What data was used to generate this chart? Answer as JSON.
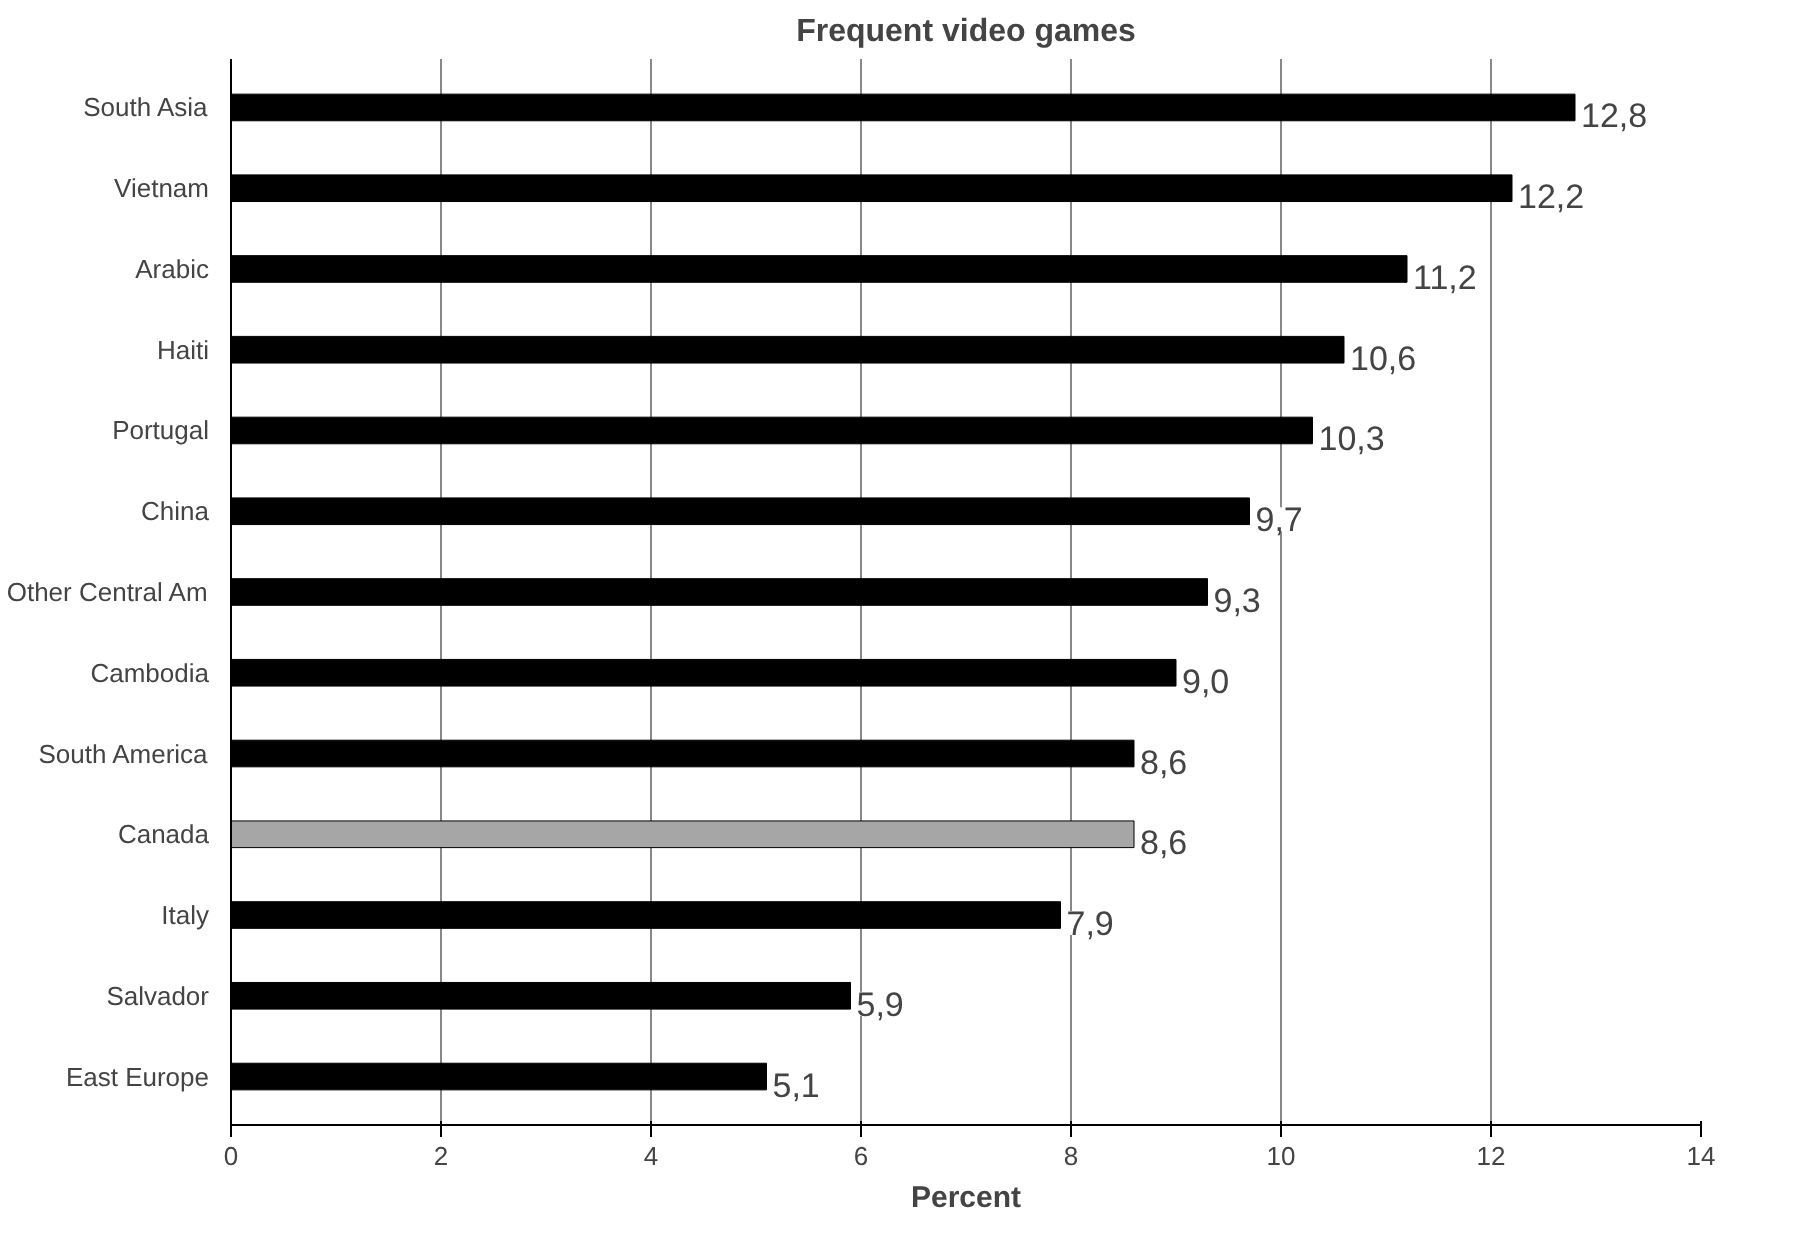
{
  "chart_data": {
    "type": "bar",
    "orientation": "horizontal",
    "title": "Frequent video games",
    "xlabel": "Percent",
    "categories": [
      "South Asia",
      "Vietnam",
      "Arabic",
      "Haiti",
      "Portugal",
      "China",
      "Other Central Am",
      "Cambodia",
      "South America",
      "Canada",
      "Italy",
      "Salvador",
      "East Europe"
    ],
    "values": [
      12.8,
      12.2,
      11.2,
      10.6,
      10.3,
      9.7,
      9.3,
      9.0,
      8.6,
      8.6,
      7.9,
      5.9,
      5.1
    ],
    "colors": [
      "#000000",
      "#000000",
      "#000000",
      "#000000",
      "#000000",
      "#000000",
      "#000000",
      "#000000",
      "#000000",
      "#a6a6a6",
      "#000000",
      "#000000",
      "#000000"
    ],
    "value_labels": [
      "12,8",
      "12,2",
      "11,2",
      "10,6",
      "10,3",
      "9,7",
      "9,3",
      "9,0",
      "8,6",
      "8,6",
      "7,9",
      "5,9",
      "5,1"
    ],
    "xlim": [
      0,
      14
    ],
    "xticks": [
      0,
      2,
      4,
      6,
      8,
      10,
      12,
      14
    ],
    "grid": "x"
  }
}
